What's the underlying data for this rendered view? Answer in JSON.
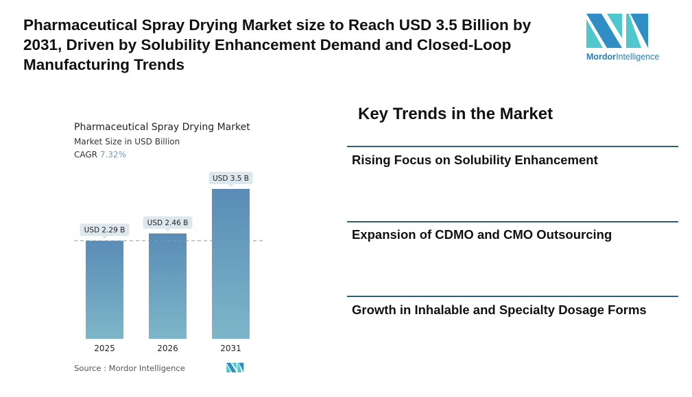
{
  "headline": "Pharmaceutical Spray Drying Market size to Reach USD 3.5 Billion by 2031, Driven by Solubility Enhancement Demand and Closed-Loop Manufacturing Trends",
  "logo": {
    "text_bold": "Mordor",
    "text_regular": "Intelligence"
  },
  "chart_data": {
    "type": "bar",
    "title": "Pharmaceutical Spray Drying Market",
    "subtitle": "Market Size in USD Billion",
    "cagr_label": "CAGR",
    "cagr_value": "7.32%",
    "categories": [
      "2025",
      "2026",
      "2031"
    ],
    "values": [
      2.29,
      2.46,
      3.5
    ],
    "data_labels": [
      "USD 2.29 B",
      "USD 2.46 B",
      "USD 3.5 B"
    ],
    "ylim": [
      0,
      3.5
    ],
    "grid": false,
    "reference_line_value": 2.29,
    "colors": {
      "bar_top": "#5a8cb6",
      "bar_bottom": "#7db6c9",
      "label_bg": "#dde8ee"
    }
  },
  "source": "Source :  Mordor Intelligence",
  "key_trends": {
    "title": "Key Trends in the Market",
    "items": [
      "Rising Focus on Solubility Enhancement",
      "Expansion of CDMO and CMO Outsourcing",
      "Growth in Inhalable and Specialty Dosage Forms"
    ]
  }
}
